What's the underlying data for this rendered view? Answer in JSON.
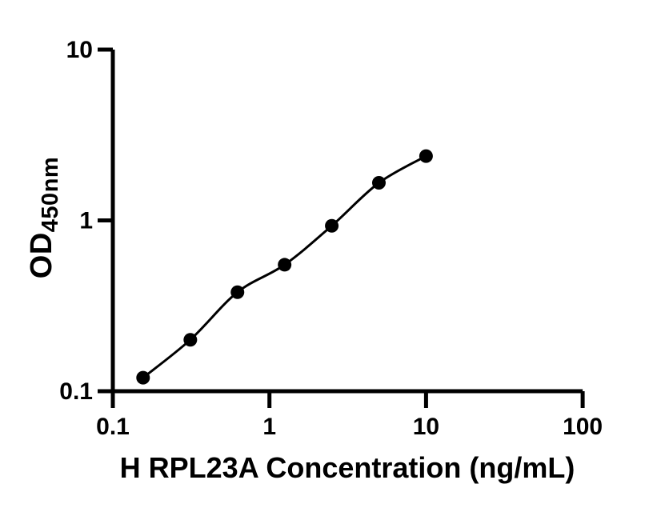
{
  "chart_data": {
    "type": "scatter",
    "title": "",
    "xlabel": "H RPL23A Concentration (ng/mL)",
    "ylabel_main": "OD",
    "ylabel_sub": "450nm",
    "x_scale": "log",
    "y_scale": "log",
    "xlim": [
      0.1,
      100
    ],
    "ylim": [
      0.1,
      10
    ],
    "x_ticks": [
      "0.1",
      "1",
      "10",
      "100"
    ],
    "y_ticks": [
      "0.1",
      "1",
      "10"
    ],
    "grid": false,
    "legend": false,
    "fit_line": true,
    "axis_color": "#000000",
    "marker_color": "#000000",
    "line_color": "#000000",
    "background_color": "#ffffff",
    "points": [
      {
        "x": 0.156,
        "y": 0.12
      },
      {
        "x": 0.3125,
        "y": 0.2
      },
      {
        "x": 0.625,
        "y": 0.38
      },
      {
        "x": 1.25,
        "y": 0.55
      },
      {
        "x": 2.5,
        "y": 0.93
      },
      {
        "x": 5,
        "y": 1.66
      },
      {
        "x": 10,
        "y": 2.38
      }
    ]
  }
}
